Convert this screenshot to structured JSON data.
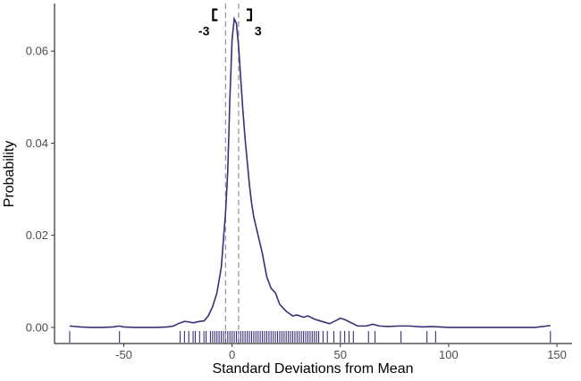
{
  "chart_data": {
    "type": "line",
    "title": "",
    "xlabel": "Standard Deviations from Mean",
    "ylabel": "Probability",
    "xlim": [
      -82,
      157
    ],
    "ylim": [
      -0.0035,
      0.0703
    ],
    "x_ticks": [
      -50,
      0,
      50,
      100,
      150
    ],
    "y_ticks": [
      0.0,
      0.02,
      0.04,
      0.06
    ],
    "x_tick_labels": [
      "-50",
      "0",
      "50",
      "100",
      "150"
    ],
    "y_tick_labels": [
      "0.00",
      "0.02",
      "0.04",
      "0.06"
    ],
    "grid": false,
    "legend": "none",
    "colors": {
      "density": "#3b2f7a",
      "rug": "#3b2f7a",
      "vline": "#999999",
      "axis": "#000000",
      "tick_text": "#4d4d4d"
    },
    "vlines": [
      -3,
      3
    ],
    "annotations": [
      {
        "label": "-3",
        "x": -3,
        "y": 0.0665,
        "side": "left"
      },
      {
        "label": "3",
        "x": 3,
        "y": 0.0665,
        "side": "right"
      }
    ],
    "series": [
      {
        "x": [
          -75,
          -70,
          -65,
          -60,
          -55,
          -52,
          -50,
          -45,
          -40,
          -35,
          -30,
          -27,
          -25,
          -22,
          -20,
          -18,
          -15,
          -13,
          -11,
          -9,
          -7,
          -5,
          -3,
          -2,
          -1,
          0,
          1,
          2,
          3,
          4,
          5,
          6,
          7,
          8,
          9,
          10,
          12,
          14,
          16,
          18,
          20,
          22,
          25,
          28,
          30,
          33,
          35,
          38,
          40,
          45,
          48,
          50,
          52,
          55,
          58,
          62,
          65,
          68,
          72,
          77,
          82,
          88,
          92,
          96,
          100,
          110,
          120,
          130,
          140,
          147
        ],
        "y": [
          0.0003,
          0.0001,
          0.0,
          0.0,
          0.0001,
          0.0003,
          0.0001,
          0.0,
          0.0,
          0.0,
          0.0001,
          0.0003,
          0.0008,
          0.0013,
          0.0012,
          0.001,
          0.0013,
          0.0014,
          0.0025,
          0.0045,
          0.0075,
          0.013,
          0.025,
          0.034,
          0.05,
          0.0625,
          0.067,
          0.066,
          0.061,
          0.054,
          0.047,
          0.041,
          0.036,
          0.031,
          0.027,
          0.024,
          0.02,
          0.016,
          0.011,
          0.0085,
          0.0075,
          0.005,
          0.0035,
          0.0025,
          0.0027,
          0.0022,
          0.0025,
          0.0018,
          0.0015,
          0.0008,
          0.0015,
          0.002,
          0.0017,
          0.001,
          0.0003,
          0.0003,
          0.0007,
          0.0003,
          0.0002,
          0.0003,
          0.0003,
          0.0001,
          0.0002,
          0.0001,
          0.0,
          0.0,
          0.0,
          0.0,
          0.0,
          0.0004
        ]
      }
    ],
    "rug": [
      -75,
      -52,
      -24,
      -22,
      -20,
      -18,
      -17,
      -15,
      -13,
      -12,
      -10,
      -9,
      -8,
      -7,
      -6,
      -5,
      -4,
      -3,
      -2,
      -1,
      0,
      1,
      2,
      3,
      4,
      5,
      6,
      7,
      8,
      9,
      10,
      11,
      12,
      13,
      14,
      15,
      16,
      17,
      18,
      19,
      20,
      21,
      22,
      23,
      24,
      25,
      26,
      27,
      28,
      29,
      30,
      31,
      32,
      33,
      34,
      35,
      36,
      37,
      38,
      39,
      40,
      42,
      44,
      47,
      50,
      52,
      54,
      56,
      63,
      66,
      78,
      90,
      94,
      147
    ]
  }
}
